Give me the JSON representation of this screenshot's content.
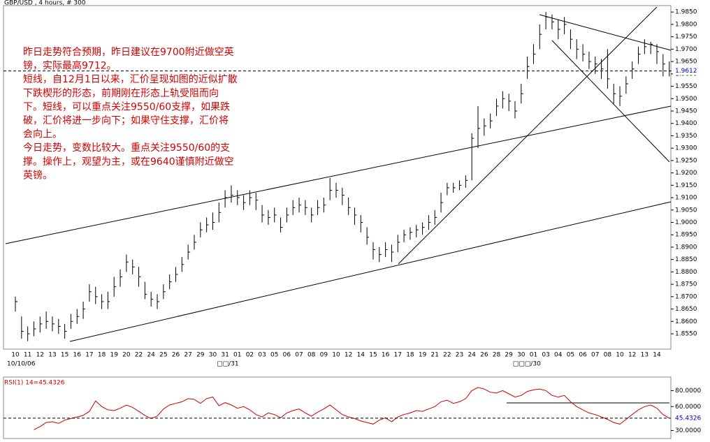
{
  "chart_data": [
    {
      "type": "ohlc",
      "title": "GBP/USD , 4 hours, # 300",
      "annotation": [
        "昨日走势符合预期，昨日建议在9700附近做空英",
        "镑，实际最高9712。",
        "短线，自12月1日以来，汇价呈现如图的近似扩散",
        "下跌楔形的形态，前期刚在形态上轨受阻而向",
        "下。短线，可以重点关注9550/60支撑，如果跌",
        "破，汇价将进一步向下；如果守住支撑，汇价将",
        "会向上。",
        "今日走势，变数比较大。重点关注9550/60的支",
        "撑。操作上，观望为主，或在9640谨慎附近做空",
        "英镑。"
      ],
      "categories": [
        "10",
        null,
        "11",
        null,
        "12",
        null,
        "13",
        null,
        "15",
        null,
        "16",
        null,
        "17",
        null,
        "18",
        null,
        "19",
        null,
        "20",
        null,
        "22",
        null,
        "24",
        null,
        "25",
        null,
        "26",
        null,
        "27",
        null,
        "29",
        null,
        "30",
        null,
        "31",
        null,
        "01",
        null,
        "02",
        null,
        "03",
        null,
        "05",
        null,
        "06",
        null,
        "07",
        null,
        "08",
        null,
        "09",
        null,
        "10",
        null,
        "12",
        null,
        "14",
        null,
        "15",
        null,
        "16",
        null,
        "17",
        null,
        "18",
        null,
        "19",
        null,
        "21",
        null,
        "22",
        null,
        "23",
        null,
        "24",
        null,
        "26",
        null,
        "28",
        null,
        "29",
        null,
        "30",
        null,
        "01",
        null,
        "03",
        null,
        "04",
        null,
        "05",
        null,
        "06",
        null,
        "07",
        null,
        "08",
        null,
        "10",
        null,
        "12",
        null,
        "13",
        null,
        "14",
        null,
        null
      ],
      "categories_sub": [
        "10/10/06",
        null,
        null,
        null,
        null,
        null,
        null,
        null,
        null,
        null,
        null,
        null,
        null,
        null,
        null,
        null,
        null,
        null,
        null,
        null,
        null,
        null,
        null,
        null,
        null,
        null,
        null,
        null,
        null,
        null,
        null,
        null,
        null,
        null,
        "□□/31",
        null,
        null,
        null,
        null,
        null,
        null,
        null,
        null,
        null,
        null,
        null,
        null,
        null,
        null,
        null,
        null,
        null,
        null,
        null,
        null,
        null,
        null,
        null,
        null,
        null,
        null,
        null,
        null,
        null,
        null,
        null,
        null,
        null,
        null,
        null,
        null,
        null,
        null,
        null,
        null,
        null,
        null,
        null,
        null,
        null,
        null,
        null,
        "□□□/30",
        null,
        null,
        null,
        null,
        null,
        null,
        null,
        null,
        null,
        null,
        null,
        null,
        null,
        null,
        null,
        null,
        null,
        null,
        null,
        null,
        null,
        null,
        null,
        null
      ],
      "high": [
        1.87,
        1.862,
        1.858,
        1.86,
        1.862,
        1.864,
        1.862,
        1.861,
        1.859,
        1.863,
        1.865,
        1.868,
        1.875,
        1.874,
        1.871,
        1.872,
        1.878,
        1.881,
        1.887,
        1.885,
        1.882,
        1.876,
        1.872,
        1.871,
        1.875,
        1.879,
        1.882,
        1.886,
        1.891,
        1.895,
        1.9,
        1.902,
        1.904,
        1.908,
        1.913,
        1.915,
        1.913,
        1.911,
        1.913,
        1.912,
        1.907,
        1.905,
        1.906,
        1.902,
        1.906,
        1.909,
        1.91,
        1.909,
        1.906,
        1.909,
        1.91,
        1.918,
        1.916,
        1.914,
        1.91,
        1.906,
        1.903,
        1.898,
        1.892,
        1.89,
        1.892,
        1.891,
        1.895,
        1.897,
        1.898,
        1.899,
        1.9,
        1.903,
        1.905,
        1.912,
        1.916,
        1.916,
        1.917,
        1.919,
        1.936,
        1.947,
        1.942,
        1.944,
        1.95,
        1.953,
        1.952,
        1.949,
        1.956,
        1.967,
        1.972,
        1.98,
        1.985,
        1.984,
        1.982,
        1.983,
        1.978,
        1.974,
        1.972,
        1.969,
        1.967,
        1.966,
        1.97,
        1.956,
        1.955,
        1.959,
        1.965,
        1.971,
        1.974,
        1.973,
        1.972,
        1.968,
        1.965
      ],
      "low": [
        1.864,
        1.853,
        1.852,
        1.854,
        1.8555,
        1.857,
        1.856,
        1.855,
        1.853,
        1.857,
        1.859,
        1.861,
        1.868,
        1.867,
        1.865,
        1.865,
        1.87,
        1.874,
        1.88,
        1.879,
        1.874,
        1.869,
        1.866,
        1.865,
        1.869,
        1.873,
        1.876,
        1.88,
        1.885,
        1.889,
        1.894,
        1.896,
        1.897,
        1.9,
        1.906,
        1.908,
        1.907,
        1.905,
        1.907,
        1.905,
        1.9,
        1.899,
        1.9,
        1.896,
        1.9,
        1.903,
        1.904,
        1.903,
        1.9,
        1.903,
        1.904,
        1.909,
        1.91,
        1.907,
        1.903,
        1.899,
        1.896,
        1.891,
        1.885,
        1.884,
        1.886,
        1.884,
        1.888,
        1.892,
        1.893,
        1.894,
        1.895,
        1.897,
        1.899,
        1.904,
        1.911,
        1.912,
        1.913,
        1.914,
        1.917,
        1.93,
        1.935,
        1.938,
        1.943,
        1.946,
        1.945,
        1.942,
        1.948,
        1.958,
        1.964,
        1.97,
        1.978,
        1.978,
        1.974,
        1.976,
        1.97,
        1.966,
        1.965,
        1.962,
        1.96,
        1.958,
        1.954,
        1.948,
        1.947,
        1.952,
        1.958,
        1.964,
        1.968,
        1.968,
        1.964,
        1.959,
        1.959
      ],
      "close": [
        1.868,
        1.856,
        1.855,
        1.857,
        1.859,
        1.86,
        1.859,
        1.858,
        1.856,
        1.86,
        1.862,
        1.865,
        1.872,
        1.87,
        1.868,
        1.868,
        1.874,
        1.878,
        1.884,
        1.882,
        1.878,
        1.871,
        1.869,
        1.868,
        1.872,
        1.876,
        1.879,
        1.883,
        1.888,
        1.892,
        1.897,
        1.899,
        1.9,
        1.904,
        1.91,
        1.911,
        1.91,
        1.908,
        1.91,
        1.909,
        1.903,
        1.902,
        1.903,
        1.898,
        1.903,
        1.906,
        1.907,
        1.906,
        1.903,
        1.906,
        1.907,
        1.913,
        1.913,
        1.911,
        1.906,
        1.903,
        1.9,
        1.894,
        1.889,
        1.887,
        1.889,
        1.888,
        1.892,
        1.895,
        1.896,
        1.897,
        1.898,
        1.9,
        1.902,
        1.908,
        1.914,
        1.914,
        1.915,
        1.917,
        1.934,
        1.938,
        1.939,
        1.941,
        1.947,
        1.95,
        1.949,
        1.945,
        1.952,
        1.963,
        1.968,
        1.976,
        1.983,
        1.981,
        1.978,
        1.98,
        1.974,
        1.97,
        1.968,
        1.965,
        1.964,
        1.962,
        1.958,
        1.952,
        1.951,
        1.956,
        1.962,
        1.968,
        1.971,
        1.972,
        1.969,
        1.964,
        1.9612
      ],
      "color": "#000000",
      "highlight_color": "#0000cc",
      "ylim": [
        1.8488,
        1.9876
      ],
      "yticks": [
        {
          "value": 1.855,
          "label": "1.8550"
        },
        {
          "value": 1.86,
          "label": "1.8600"
        },
        {
          "value": 1.865,
          "label": "1.8650"
        },
        {
          "value": 1.87,
          "label": "1.8700"
        },
        {
          "value": 1.875,
          "label": "1.8750"
        },
        {
          "value": 1.88,
          "label": "1.8800"
        },
        {
          "value": 1.885,
          "label": "1.8850"
        },
        {
          "value": 1.89,
          "label": "1.8900"
        },
        {
          "value": 1.895,
          "label": "1.8950"
        },
        {
          "value": 1.9,
          "label": "1.9000"
        },
        {
          "value": 1.905,
          "label": "1.9050"
        },
        {
          "value": 1.91,
          "label": "1.9100"
        },
        {
          "value": 1.915,
          "label": "1.9150"
        },
        {
          "value": 1.92,
          "label": "1.9200"
        },
        {
          "value": 1.925,
          "label": "1.9250"
        },
        {
          "value": 1.93,
          "label": "1.9300"
        },
        {
          "value": 1.935,
          "label": "1.9350"
        },
        {
          "value": 1.94,
          "label": "1.9400"
        },
        {
          "value": 1.945,
          "label": "1.9450"
        },
        {
          "value": 1.95,
          "label": "1.9500"
        },
        {
          "value": 1.955,
          "label": "1.9550"
        },
        {
          "value": 1.96,
          "label": "1.9600"
        },
        {
          "value": 1.965,
          "label": "1.9650"
        },
        {
          "value": 1.97,
          "label": "1.9700"
        },
        {
          "value": 1.975,
          "label": "1.9750"
        },
        {
          "value": 1.98,
          "label": "1.9800"
        },
        {
          "value": 1.985,
          "label": "1.9850"
        }
      ]
    },
    {
      "type": "line",
      "title": "RSI(1) 14=45.4326",
      "values": [
        null,
        null,
        null,
        31,
        35,
        40,
        41,
        39,
        43,
        45,
        47,
        49,
        54,
        67,
        60,
        56,
        55,
        58,
        62,
        59,
        54,
        49,
        45,
        48,
        57,
        62,
        64,
        66,
        70,
        69,
        64,
        70,
        72,
        61,
        65,
        62,
        58,
        60,
        56,
        50,
        47,
        52,
        50,
        46,
        52,
        55,
        57,
        52,
        48,
        53,
        57,
        62,
        56,
        50,
        47,
        45,
        42,
        40,
        38,
        43,
        46,
        41,
        47,
        50,
        52,
        55,
        54,
        57,
        60,
        66,
        68,
        64,
        66,
        70,
        80,
        84,
        82,
        78,
        77,
        80,
        76,
        72,
        74,
        79,
        81,
        82,
        80,
        74,
        72,
        74,
        66,
        60,
        56,
        52,
        50,
        47,
        44,
        40,
        38,
        44,
        50,
        56,
        60,
        62,
        58,
        50,
        45.4326
      ],
      "color": "#cc0000",
      "highlight_color": "#0000cc",
      "ylim": [
        20,
        97
      ],
      "yticks": [
        {
          "value": 80,
          "label": "80.0000"
        },
        {
          "value": 60,
          "label": "60.0000"
        },
        {
          "value": 30,
          "label": "30.0000"
        }
      ]
    }
  ]
}
